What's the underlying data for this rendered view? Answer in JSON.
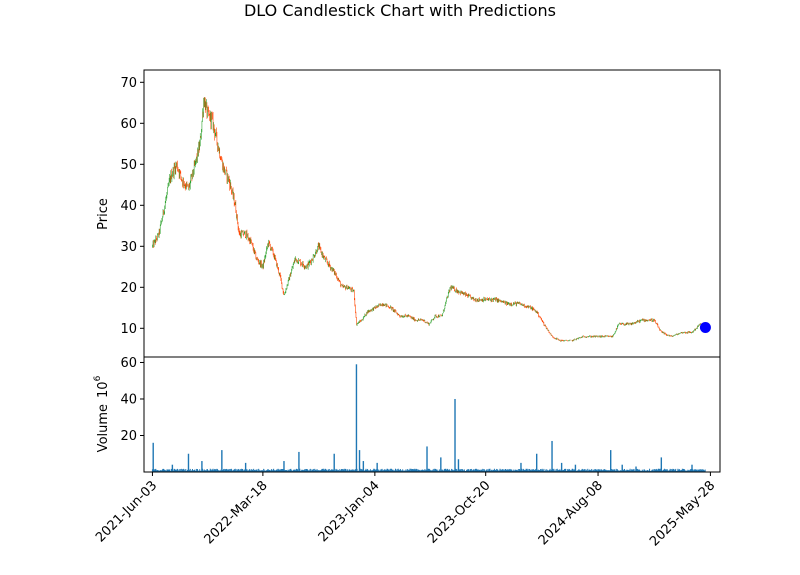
{
  "chart_data": {
    "type": "candlestick",
    "title": "DLO Candlestick Chart with Predictions",
    "price_panel": {
      "ylabel": "Price",
      "ylim": [
        3,
        73
      ],
      "yticks": [
        10,
        20,
        30,
        40,
        50,
        60,
        70
      ],
      "up_color": "#2ca02c",
      "down_color": "#ff4500",
      "series_close": [
        [
          "2021-06-03",
          30
        ],
        [
          "2021-06-20",
          33
        ],
        [
          "2021-07-05",
          40
        ],
        [
          "2021-07-20",
          47
        ],
        [
          "2021-08-05",
          50
        ],
        [
          "2021-08-20",
          46
        ],
        [
          "2021-09-05",
          44
        ],
        [
          "2021-09-20",
          49
        ],
        [
          "2021-10-05",
          55
        ],
        [
          "2021-10-15",
          66
        ],
        [
          "2021-10-25",
          62
        ],
        [
          "2021-11-05",
          61
        ],
        [
          "2021-11-20",
          55
        ],
        [
          "2021-12-05",
          49
        ],
        [
          "2021-12-20",
          46
        ],
        [
          "2022-01-05",
          40
        ],
        [
          "2022-01-15",
          33
        ],
        [
          "2022-02-01",
          33
        ],
        [
          "2022-02-15",
          31
        ],
        [
          "2022-03-01",
          27
        ],
        [
          "2022-03-18",
          25
        ],
        [
          "2022-04-01",
          31
        ],
        [
          "2022-04-15",
          28
        ],
        [
          "2022-05-01",
          23
        ],
        [
          "2022-05-12",
          18
        ],
        [
          "2022-05-25",
          22
        ],
        [
          "2022-06-10",
          27
        ],
        [
          "2022-06-25",
          26
        ],
        [
          "2022-07-10",
          25
        ],
        [
          "2022-07-25",
          27
        ],
        [
          "2022-08-10",
          30
        ],
        [
          "2022-08-25",
          27
        ],
        [
          "2022-09-10",
          25
        ],
        [
          "2022-09-25",
          23
        ],
        [
          "2022-10-10",
          20
        ],
        [
          "2022-10-25",
          20
        ],
        [
          "2022-11-10",
          19
        ],
        [
          "2022-11-17",
          11
        ],
        [
          "2022-12-01",
          12
        ],
        [
          "2022-12-15",
          14
        ],
        [
          "2023-01-04",
          15
        ],
        [
          "2023-01-25",
          16
        ],
        [
          "2023-02-15",
          15
        ],
        [
          "2023-03-10",
          13
        ],
        [
          "2023-04-01",
          13
        ],
        [
          "2023-04-20",
          12
        ],
        [
          "2023-05-10",
          12
        ],
        [
          "2023-05-25",
          11
        ],
        [
          "2023-06-10",
          13
        ],
        [
          "2023-06-28",
          13
        ],
        [
          "2023-07-10",
          17
        ],
        [
          "2023-07-20",
          20
        ],
        [
          "2023-08-10",
          19
        ],
        [
          "2023-09-01",
          18
        ],
        [
          "2023-09-20",
          17
        ],
        [
          "2023-10-20",
          17
        ],
        [
          "2023-11-15",
          17
        ],
        [
          "2023-12-15",
          16
        ],
        [
          "2024-01-15",
          16
        ],
        [
          "2024-02-15",
          15
        ],
        [
          "2024-03-01",
          14
        ],
        [
          "2024-03-20",
          11
        ],
        [
          "2024-04-10",
          8
        ],
        [
          "2024-05-01",
          7
        ],
        [
          "2024-06-01",
          7
        ],
        [
          "2024-07-01",
          8
        ],
        [
          "2024-08-08",
          8
        ],
        [
          "2024-09-15",
          8
        ],
        [
          "2024-10-01",
          11
        ],
        [
          "2024-11-01",
          11
        ],
        [
          "2024-12-01",
          12
        ],
        [
          "2025-01-01",
          12
        ],
        [
          "2025-01-20",
          9
        ],
        [
          "2025-02-15",
          8
        ],
        [
          "2025-03-15",
          9
        ],
        [
          "2025-04-10",
          9
        ],
        [
          "2025-05-01",
          11
        ],
        [
          "2025-05-15",
          10
        ]
      ],
      "prediction": {
        "date": "2025-05-15",
        "value": 10.2,
        "color": "#0000ff"
      }
    },
    "volume_panel": {
      "ylabel": "Volume",
      "exponent_label": "10",
      "exponent_power": "6",
      "ylim": [
        0,
        63
      ],
      "yticks": [
        20,
        40,
        60
      ],
      "bar_color": "#1f77b4",
      "baseline_millions": 1.2,
      "spikes": [
        [
          "2021-06-05",
          16
        ],
        [
          "2021-07-25",
          4
        ],
        [
          "2021-09-05",
          10
        ],
        [
          "2021-10-10",
          6
        ],
        [
          "2021-12-01",
          12
        ],
        [
          "2022-02-01",
          5
        ],
        [
          "2022-05-12",
          6
        ],
        [
          "2022-06-20",
          11
        ],
        [
          "2022-09-20",
          10
        ],
        [
          "2022-11-17",
          59
        ],
        [
          "2022-11-25",
          12
        ],
        [
          "2022-12-05",
          6
        ],
        [
          "2023-01-10",
          5
        ],
        [
          "2023-05-20",
          14
        ],
        [
          "2023-06-25",
          8
        ],
        [
          "2023-08-01",
          40
        ],
        [
          "2023-08-10",
          7
        ],
        [
          "2024-01-20",
          5
        ],
        [
          "2024-03-01",
          10
        ],
        [
          "2024-04-10",
          17
        ],
        [
          "2024-05-05",
          5
        ],
        [
          "2024-06-10",
          4
        ],
        [
          "2024-09-10",
          12
        ],
        [
          "2024-10-10",
          4
        ],
        [
          "2024-11-15",
          3
        ],
        [
          "2025-01-20",
          8
        ],
        [
          "2025-04-10",
          4
        ]
      ]
    },
    "x_axis": {
      "range": [
        "2021-05-12",
        "2025-06-22"
      ],
      "tick_labels": [
        "2021-Jun-03",
        "2022-Mar-18",
        "2023-Jan-04",
        "2023-Oct-20",
        "2024-Aug-08",
        "2025-May-28"
      ],
      "tick_dates": [
        "2021-06-03",
        "2022-03-18",
        "2023-01-04",
        "2023-10-20",
        "2024-08-08",
        "2025-05-28"
      ]
    }
  }
}
